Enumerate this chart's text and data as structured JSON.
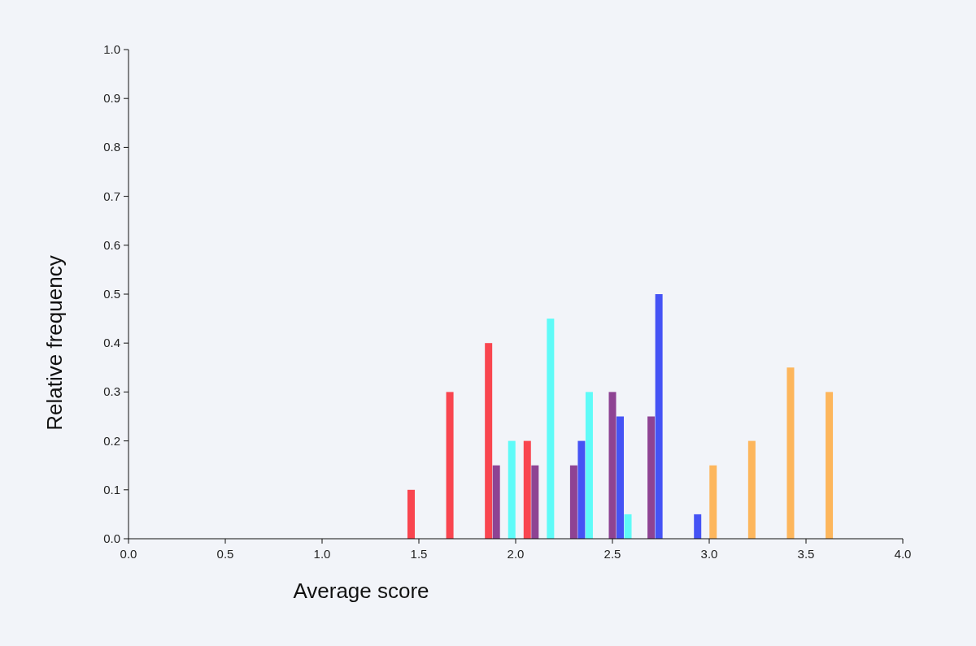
{
  "chart_data": {
    "type": "bar",
    "xlabel": "Average score",
    "ylabel": "Relative frequency",
    "xlim": [
      0,
      4
    ],
    "ylim": [
      0,
      1
    ],
    "xticks": [
      {
        "value": 0,
        "label": "0.0"
      },
      {
        "value": 0.5,
        "label": "0.5"
      },
      {
        "value": 1,
        "label": "1.0"
      },
      {
        "value": 1.5,
        "label": "1.5"
      },
      {
        "value": 2,
        "label": "2.0"
      },
      {
        "value": 2.5,
        "label": "2.5"
      },
      {
        "value": 3,
        "label": "3.0"
      },
      {
        "value": 3.5,
        "label": "3.5"
      },
      {
        "value": 4,
        "label": "4.0"
      }
    ],
    "yticks": [
      {
        "value": 0,
        "label": "0.0"
      },
      {
        "value": 0.1,
        "label": "0.1"
      },
      {
        "value": 0.2,
        "label": "0.2"
      },
      {
        "value": 0.3,
        "label": "0.3"
      },
      {
        "value": 0.4,
        "label": "0.4"
      },
      {
        "value": 0.5,
        "label": "0.5"
      },
      {
        "value": 0.6,
        "label": "0.6"
      },
      {
        "value": 0.7,
        "label": "0.7"
      },
      {
        "value": 0.8,
        "label": "0.8"
      },
      {
        "value": 0.9,
        "label": "0.9"
      },
      {
        "value": 1,
        "label": "1.0"
      }
    ],
    "grid": false,
    "series": [
      {
        "color": "#f9454f",
        "x": [
          1.46,
          1.66,
          1.86,
          2.06
        ],
        "values": [
          0.1,
          0.3,
          0.4,
          0.2
        ]
      },
      {
        "color": "#8e4393",
        "x": [
          1.9,
          2.1,
          2.3,
          2.5,
          2.7
        ],
        "values": [
          0.15,
          0.15,
          0.15,
          0.3,
          0.25
        ]
      },
      {
        "color": "#5ffbf8",
        "x": [
          1.98,
          2.18,
          2.38,
          2.58
        ],
        "values": [
          0.2,
          0.45,
          0.3,
          0.05
        ]
      },
      {
        "color": "#4553f5",
        "x": [
          2.34,
          2.54,
          2.74,
          2.94
        ],
        "values": [
          0.2,
          0.25,
          0.5,
          0.05
        ]
      },
      {
        "color": "#fdb65c",
        "x": [
          3.02,
          3.22,
          3.42,
          3.62
        ],
        "values": [
          0.15,
          0.2,
          0.35,
          0.3
        ]
      }
    ]
  }
}
